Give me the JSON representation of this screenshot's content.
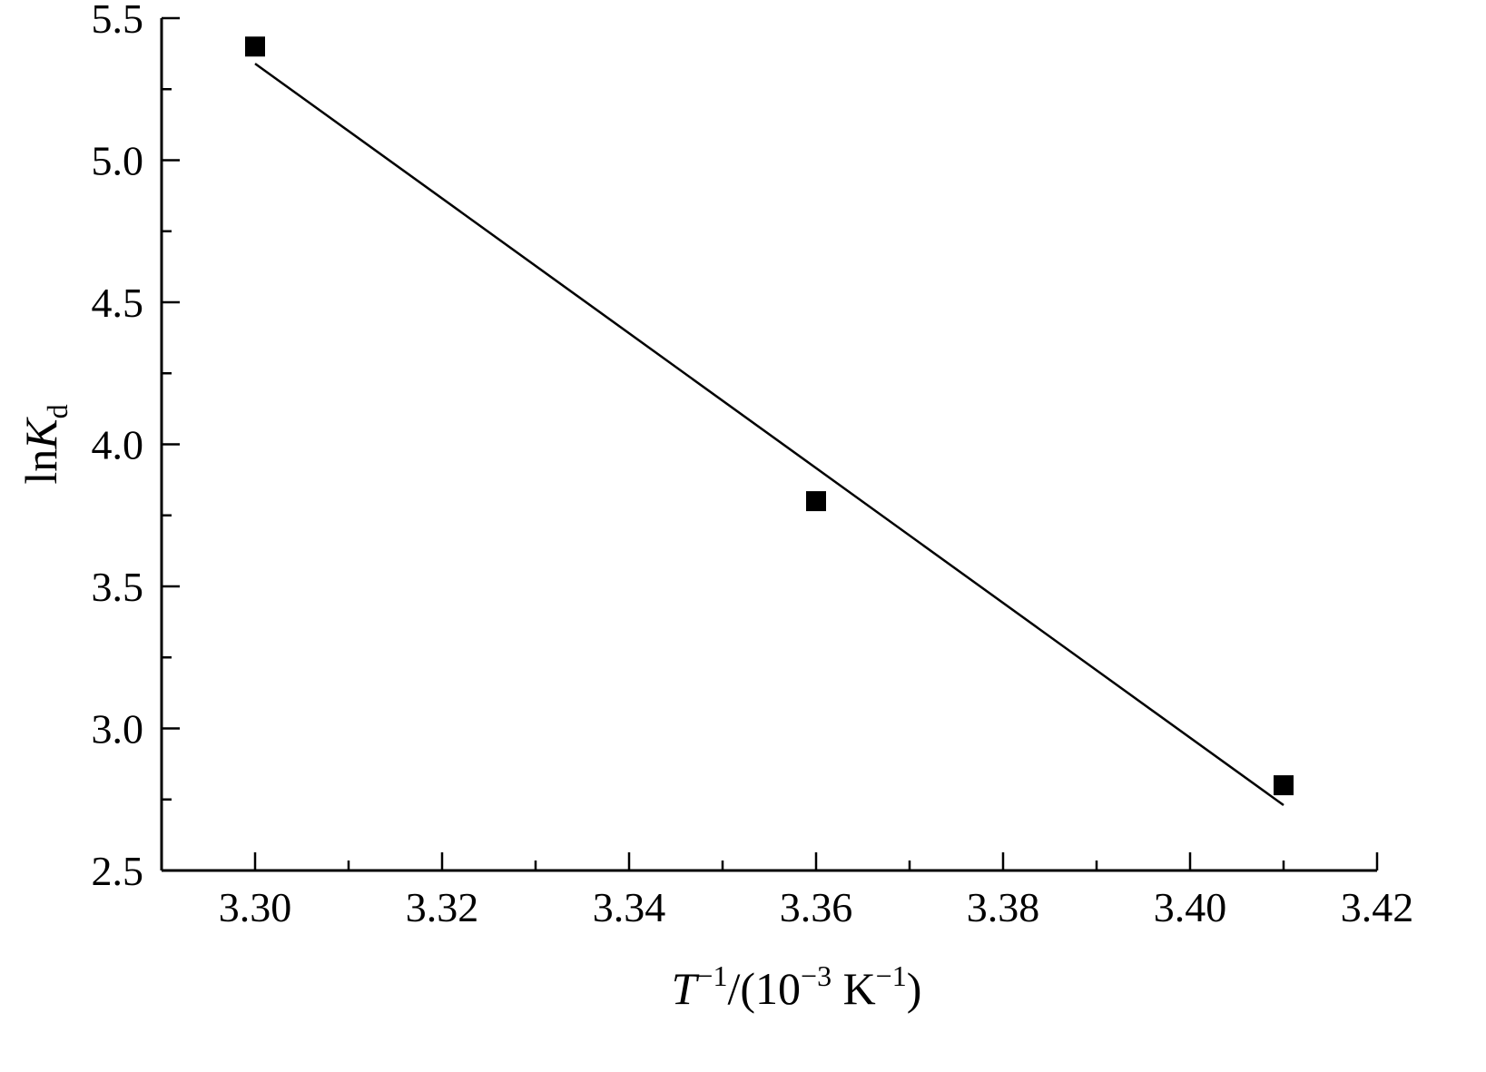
{
  "chart_data": {
    "type": "scatter",
    "xlabel": {
      "main": "T",
      "sup1": "−1",
      "mid": "/(10",
      "sup2": "−3",
      "unit": " K",
      "sup3": "−1",
      "end": ")"
    },
    "ylabel": {
      "main": "ln",
      "italic": "K",
      "sub": "d"
    },
    "xlim": [
      3.29,
      3.42
    ],
    "ylim": [
      2.5,
      5.5
    ],
    "x_ticks": [
      "3.30",
      "3.32",
      "3.34",
      "3.36",
      "3.38",
      "3.40",
      "3.42"
    ],
    "x_tick_values": [
      3.3,
      3.32,
      3.34,
      3.36,
      3.38,
      3.4,
      3.42
    ],
    "x_minor_tick_values": [
      3.31,
      3.33,
      3.35,
      3.37,
      3.39,
      3.41
    ],
    "y_ticks": [
      "2.5",
      "3.0",
      "3.5",
      "4.0",
      "4.5",
      "5.0",
      "5.5"
    ],
    "y_tick_values": [
      2.5,
      3.0,
      3.5,
      4.0,
      4.5,
      5.0,
      5.5
    ],
    "y_minor_tick_values": [
      2.75,
      3.25,
      3.75,
      4.25,
      4.75,
      5.25
    ],
    "series": [
      {
        "marker": "square",
        "color": "#000000",
        "points": [
          {
            "x": 3.3,
            "y": 5.4
          },
          {
            "x": 3.36,
            "y": 3.8
          },
          {
            "x": 3.41,
            "y": 2.8
          }
        ]
      }
    ],
    "fit_line": {
      "color": "#000000",
      "points": [
        {
          "x": 3.3,
          "y": 5.34
        },
        {
          "x": 3.41,
          "y": 2.73
        }
      ]
    },
    "grid": false,
    "legend": "none"
  }
}
